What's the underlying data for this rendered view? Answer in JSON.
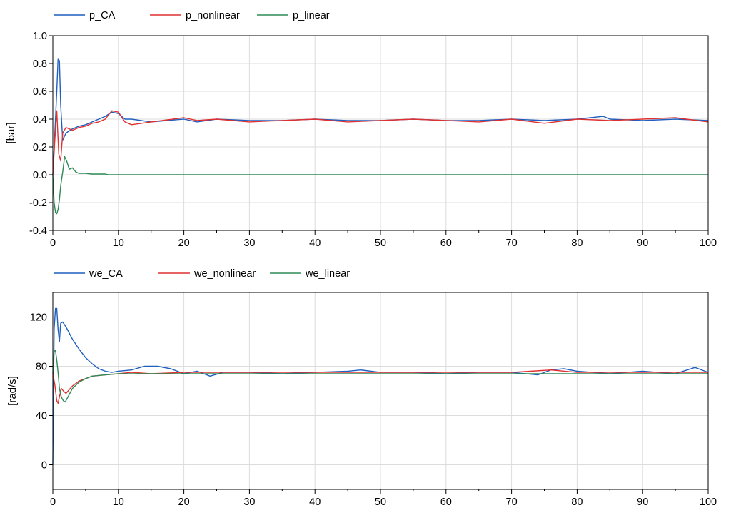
{
  "chart_data": [
    {
      "type": "line",
      "title": "",
      "xlabel": "",
      "ylabel": "[bar]",
      "xlim": [
        0,
        100
      ],
      "ylim": [
        -0.4,
        1.0
      ],
      "x_ticks": [
        "0",
        "10",
        "20",
        "30",
        "40",
        "50",
        "60",
        "70",
        "80",
        "90",
        "100"
      ],
      "y_ticks": [
        "-0.4",
        "-0.2",
        "0.0",
        "0.2",
        "0.4",
        "0.6",
        "0.8",
        "1.0"
      ],
      "grid": true,
      "legend_position": "top-left, above plot",
      "series": [
        {
          "name": "p_CA",
          "color": "#1f5fbf",
          "x": [
            0,
            0.3,
            0.6,
            0.8,
            1.0,
            1.2,
            1.5,
            2,
            3,
            4,
            5,
            6,
            7,
            8,
            9,
            10,
            11,
            12,
            15,
            20,
            22,
            25,
            30,
            35,
            40,
            45,
            50,
            55,
            60,
            65,
            70,
            75,
            80,
            84,
            85,
            90,
            95,
            100
          ],
          "y": [
            0.0,
            0.3,
            0.6,
            0.83,
            0.82,
            0.5,
            0.25,
            0.3,
            0.33,
            0.35,
            0.36,
            0.38,
            0.4,
            0.42,
            0.45,
            0.44,
            0.4,
            0.4,
            0.38,
            0.4,
            0.38,
            0.4,
            0.39,
            0.39,
            0.4,
            0.39,
            0.39,
            0.4,
            0.39,
            0.39,
            0.4,
            0.39,
            0.4,
            0.42,
            0.4,
            0.39,
            0.4,
            0.39
          ]
        },
        {
          "name": "p_nonlinear",
          "color": "#e03030",
          "x": [
            0,
            0.3,
            0.6,
            0.9,
            1.2,
            1.5,
            2,
            3,
            4,
            5,
            6,
            7,
            8,
            9,
            10,
            11,
            12,
            15,
            20,
            22,
            25,
            30,
            35,
            40,
            45,
            50,
            55,
            60,
            65,
            70,
            75,
            80,
            85,
            90,
            95,
            100
          ],
          "y": [
            0.0,
            0.25,
            0.46,
            0.15,
            0.1,
            0.3,
            0.34,
            0.32,
            0.34,
            0.35,
            0.37,
            0.38,
            0.4,
            0.46,
            0.45,
            0.38,
            0.36,
            0.38,
            0.41,
            0.39,
            0.4,
            0.38,
            0.39,
            0.4,
            0.38,
            0.39,
            0.4,
            0.39,
            0.38,
            0.4,
            0.37,
            0.4,
            0.39,
            0.4,
            0.41,
            0.38
          ]
        },
        {
          "name": "p_linear",
          "color": "#2e8b57",
          "x": [
            0,
            0.2,
            0.4,
            0.6,
            0.8,
            1.0,
            1.2,
            1.5,
            1.8,
            2.1,
            2.5,
            3,
            3.5,
            4,
            5,
            6,
            7,
            8,
            8.5,
            10,
            20,
            100
          ],
          "y": [
            0.0,
            -0.2,
            -0.27,
            -0.28,
            -0.25,
            -0.18,
            -0.08,
            0.02,
            0.13,
            0.1,
            0.04,
            0.05,
            0.02,
            0.01,
            0.01,
            0.005,
            0.005,
            0.005,
            0.0,
            0.0,
            0.0,
            0.0
          ]
        }
      ]
    },
    {
      "type": "line",
      "title": "",
      "xlabel": "",
      "ylabel": "[rad/s]",
      "xlim": [
        0,
        100
      ],
      "ylim": [
        -20,
        140
      ],
      "x_ticks": [
        "0",
        "10",
        "20",
        "30",
        "40",
        "50",
        "60",
        "70",
        "80",
        "90",
        "100"
      ],
      "y_ticks": [
        "0",
        "40",
        "80",
        "120"
      ],
      "grid": true,
      "legend_position": "top-left, above plot",
      "series": [
        {
          "name": "we_CA",
          "color": "#1f5fbf",
          "x": [
            0,
            0.2,
            0.4,
            0.6,
            0.8,
            1.0,
            1.2,
            1.5,
            2,
            3,
            4,
            5,
            6,
            7,
            8,
            9,
            10,
            12,
            14,
            16,
            18,
            20,
            22,
            24,
            26,
            30,
            35,
            40,
            45,
            47,
            50,
            55,
            60,
            65,
            70,
            74,
            76,
            78,
            80,
            85,
            90,
            95,
            98,
            100
          ],
          "y": [
            0,
            110,
            127,
            127,
            110,
            100,
            115,
            116,
            112,
            102,
            94,
            87,
            82,
            78,
            76,
            75,
            76,
            77,
            80,
            80,
            78,
            74,
            76,
            72,
            75,
            75,
            74,
            75,
            76,
            77,
            75,
            75,
            74,
            75,
            75,
            73,
            77,
            78,
            76,
            74,
            76,
            74,
            79,
            75
          ]
        },
        {
          "name": "we_nonlinear",
          "color": "#e03030",
          "x": [
            0,
            0.3,
            0.6,
            0.8,
            1.0,
            1.3,
            1.6,
            2,
            3,
            4,
            5,
            6,
            8,
            10,
            12,
            15,
            20,
            30,
            40,
            50,
            60,
            70,
            76,
            80,
            90,
            100
          ],
          "y": [
            74,
            65,
            52,
            50,
            55,
            62,
            60,
            58,
            64,
            68,
            70,
            72,
            73,
            74,
            75,
            74,
            75,
            75,
            75,
            75,
            75,
            75,
            77,
            75,
            75,
            75
          ]
        },
        {
          "name": "we_linear",
          "color": "#2e8b57",
          "x": [
            0,
            0.2,
            0.4,
            0.6,
            0.8,
            1.0,
            1.3,
            1.6,
            1.9,
            2.3,
            3,
            4,
            5,
            6,
            8,
            10,
            12,
            15,
            20,
            100
          ],
          "y": [
            74,
            92,
            93,
            85,
            75,
            62,
            55,
            52,
            51,
            55,
            62,
            67,
            70,
            72,
            73,
            74,
            74,
            74,
            74,
            74
          ]
        }
      ]
    }
  ]
}
